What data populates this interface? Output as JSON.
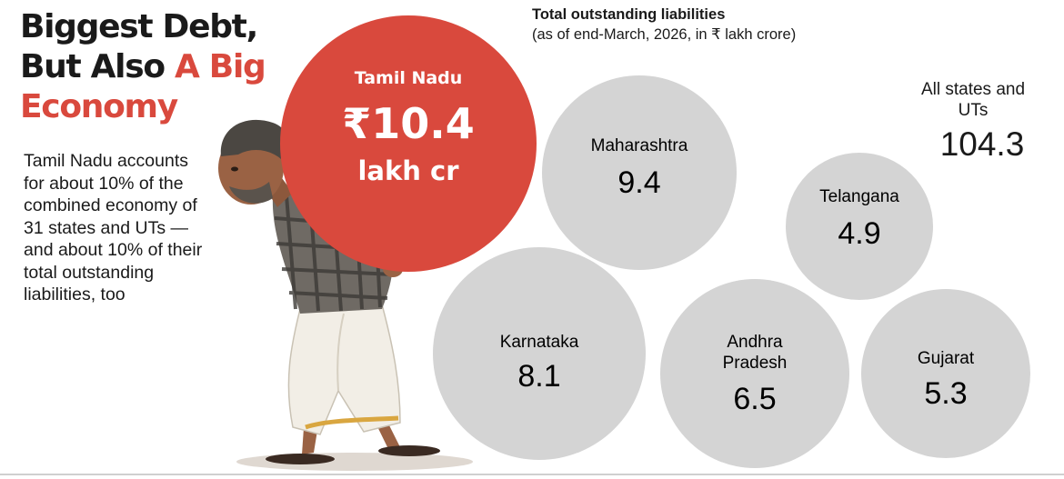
{
  "headline": {
    "line1": "Biggest Debt,",
    "line2_part1": "But Also ",
    "line2_part2": "A Big",
    "line3": "Economy"
  },
  "blurb": "Tamil Nadu accounts for about 10% of the combined economy of 31 states and UTs — and about 10% of their total outstanding liabilities, too",
  "colors": {
    "accent": "#d9493d",
    "bubble_gray": "#d4d4d4",
    "text": "#1a1a1a"
  },
  "chart_data": {
    "type": "bubble",
    "title": "Total outstanding liabilities",
    "subtitle": "(as of end-March, 2026, in ₹ lakh crore)",
    "unit": "₹ lakh crore",
    "total": {
      "label": "All states and UTs",
      "value": 104.3
    },
    "highlight": {
      "state": "Tamil Nadu",
      "value": 10.4,
      "value_label": "₹10.4",
      "value_suffix": "lakh cr",
      "color": "#d9493d"
    },
    "items": [
      {
        "state": "Maharashtra",
        "value": 9.4
      },
      {
        "state": "Telangana",
        "value": 4.9
      },
      {
        "state": "Karnataka",
        "value": 8.1
      },
      {
        "state": "Andhra Pradesh",
        "value": 6.5
      },
      {
        "state": "Gujarat",
        "value": 5.3
      }
    ]
  },
  "illustration": {
    "subject": "man-carrying-debt-illustration"
  }
}
